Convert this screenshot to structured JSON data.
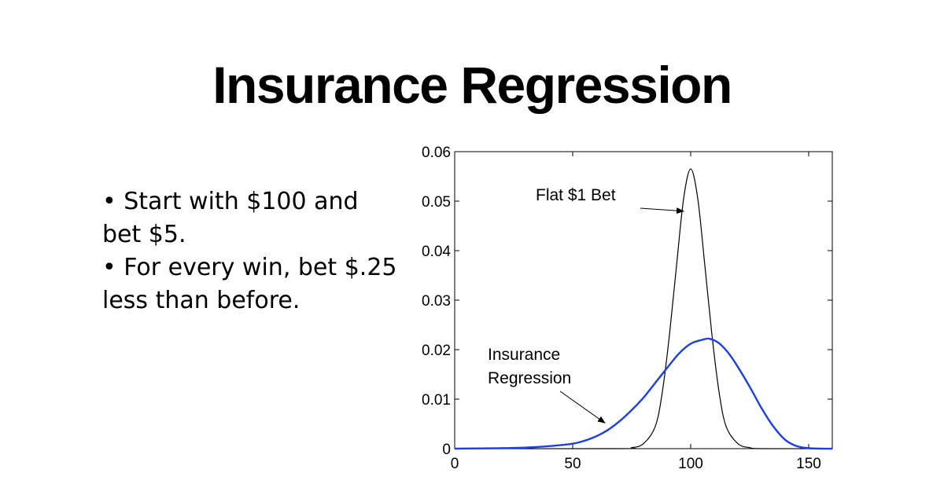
{
  "title": "Insurance Regression",
  "bullets": [
    "•  Start with $100 and bet $5.",
    "•  For every win, bet $.25 less than before."
  ],
  "chart_data": {
    "type": "line",
    "xlim": [
      0,
      160
    ],
    "ylim": [
      0,
      0.06
    ],
    "x_ticks": [
      0,
      50,
      100,
      150
    ],
    "y_ticks": [
      0,
      0.01,
      0.02,
      0.03,
      0.04,
      0.05,
      0.06
    ],
    "x_tick_labels": [
      "0",
      "50",
      "100",
      "150"
    ],
    "y_tick_labels": [
      "0",
      "0.01",
      "0.02",
      "0.03",
      "0.04",
      "0.05",
      "0.06"
    ],
    "grid": false,
    "series": [
      {
        "name": "Flat $1 Bet",
        "color": "#000000",
        "x": [
          0,
          70,
          75,
          80,
          85,
          88,
          91,
          94,
          97,
          100,
          103,
          106,
          109,
          112,
          115,
          120,
          125,
          130,
          160
        ],
        "y": [
          0,
          0,
          0.0002,
          0.001,
          0.0045,
          0.0115,
          0.023,
          0.037,
          0.0505,
          0.0565,
          0.0505,
          0.037,
          0.023,
          0.0115,
          0.0045,
          0.001,
          0.0002,
          0,
          0
        ]
      },
      {
        "name": "Insurance Regression",
        "color": "#1f3fe0",
        "x": [
          0,
          20,
          30,
          40,
          50,
          55,
          60,
          65,
          70,
          75,
          80,
          85,
          90,
          95,
          100,
          105,
          108,
          112,
          116,
          120,
          125,
          130,
          135,
          140,
          145,
          150,
          155,
          160
        ],
        "y": [
          0,
          0.0001,
          0.0002,
          0.0005,
          0.001,
          0.0016,
          0.0025,
          0.0038,
          0.0056,
          0.0078,
          0.0103,
          0.0133,
          0.0163,
          0.0192,
          0.0212,
          0.022,
          0.0222,
          0.0213,
          0.0193,
          0.0165,
          0.0125,
          0.0082,
          0.0045,
          0.0018,
          0.0005,
          0.0001,
          0,
          0
        ]
      }
    ],
    "annotations": [
      {
        "text": "Flat $1 Bet",
        "target": [
          99,
          0.0475
        ]
      },
      {
        "text": "Insurance",
        "text2": "Regression",
        "target": [
          64,
          0.0055
        ]
      }
    ]
  }
}
